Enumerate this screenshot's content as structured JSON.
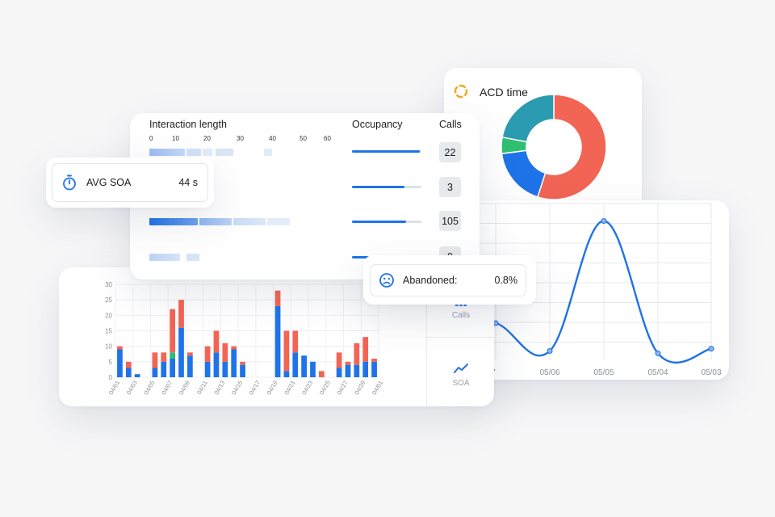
{
  "acd": {
    "title": "ACD time",
    "icon": "ring-loader-icon",
    "chart_data": {
      "type": "pie",
      "slices": [
        {
          "value": 55,
          "color": "#f26454"
        },
        {
          "value": 18,
          "color": "#1f73e8"
        },
        {
          "value": 5,
          "color": "#2fbf71"
        },
        {
          "value": 22,
          "color": "#2a9bb0"
        }
      ]
    }
  },
  "interaction": {
    "headers": {
      "length": "Interaction length",
      "occupancy": "Occupancy",
      "calls": "Calls"
    },
    "ticks": [
      "0",
      "10",
      "20",
      "30",
      "40",
      "50",
      "60"
    ],
    "rows": [
      {
        "occupancy": 0.98,
        "calls": "22"
      },
      {
        "occupancy": 0.75,
        "calls": "3"
      },
      {
        "occupancy": 0.78,
        "calls": "105"
      },
      {
        "occupancy": 0.6,
        "calls": "0"
      }
    ]
  },
  "soa": {
    "label": "AVG SOA",
    "value": "44 s",
    "icon": "stopwatch-icon"
  },
  "abandoned": {
    "label": "Abandoned:",
    "value": "0.8%",
    "icon": "sad-face-icon"
  },
  "nav": {
    "calls": "Calls",
    "soa": "SOA"
  },
  "colors": {
    "blue": "#1f73e8",
    "red": "#f26454",
    "green": "#2fbf71"
  },
  "line_chart": {
    "chart_data": {
      "type": "line",
      "x": [
        "05/07",
        "05/06",
        "05/05",
        "05/04",
        "05/03"
      ],
      "y": [
        8,
        2,
        30,
        1.5,
        2.5
      ],
      "grid": true,
      "x_tick_labels": [
        "/07",
        "05/06",
        "05/05",
        "05/04",
        "05/03"
      ]
    }
  },
  "bar_chart": {
    "chart_data": {
      "type": "bar",
      "stacked": true,
      "ylim": [
        0,
        30
      ],
      "yticks": [
        "0",
        "5",
        "10",
        "15",
        "20",
        "25",
        "30"
      ],
      "x_tick_labels": [
        "04/01",
        "04/03",
        "04/05",
        "04/07",
        "04/09",
        "04/11",
        "04/13",
        "04/15",
        "04/17",
        "04/19",
        "04/21",
        "04/23",
        "04/25",
        "04/27",
        "04/29",
        "04/01"
      ],
      "series": [
        {
          "values": [
            9,
            3,
            1,
            0,
            3,
            5,
            6,
            16,
            7,
            0,
            5,
            8,
            5,
            9,
            4,
            0,
            0,
            0,
            23,
            2,
            8,
            7,
            5,
            0,
            0,
            3,
            4,
            4,
            5,
            5
          ]
        },
        {
          "values": [
            0,
            0,
            0,
            0,
            0,
            0,
            2,
            0,
            0,
            0,
            0,
            0,
            0,
            0,
            0,
            0,
            0,
            0,
            0,
            0,
            0,
            0,
            0,
            0,
            0,
            0,
            0,
            0,
            0,
            0
          ]
        },
        {
          "values": [
            1,
            2,
            0,
            0,
            5,
            3,
            14,
            9,
            1,
            0,
            5,
            7,
            6,
            1,
            1,
            0,
            0,
            0,
            5,
            13,
            7,
            0,
            0,
            2,
            0,
            5,
            1,
            7,
            8,
            1
          ]
        }
      ]
    }
  }
}
